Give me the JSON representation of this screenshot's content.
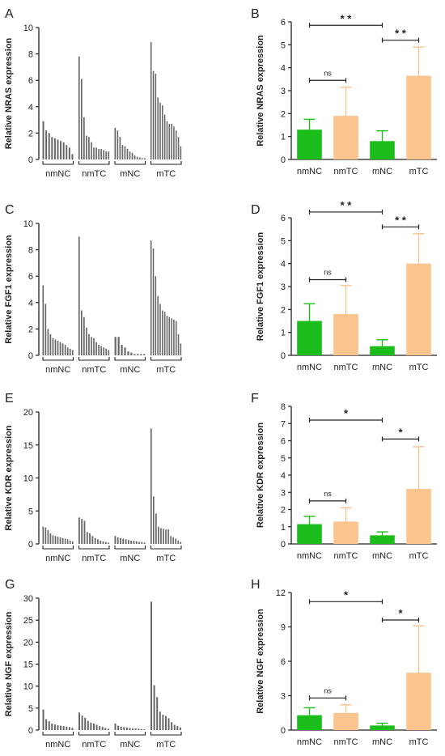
{
  "colors": {
    "green": "#1bbd1b",
    "orange": "#f9c48e",
    "bar": "#666666",
    "axis": "#222222"
  },
  "chart_data": [
    {
      "panel": "A",
      "type": "bar",
      "ylabel": "Relative NRAS expression",
      "ylim": [
        0,
        10
      ],
      "yticks": [
        0,
        2,
        4,
        6,
        8,
        10
      ],
      "groups": [
        {
          "name": "nmNC",
          "values": [
            2.9,
            2.2,
            2.0,
            1.7,
            1.6,
            1.5,
            1.4,
            1.3,
            1.1,
            0.9,
            0.4
          ]
        },
        {
          "name": "nmTC",
          "values": [
            7.8,
            6.1,
            3.2,
            1.8,
            1.7,
            1.3,
            0.9,
            0.9,
            0.8,
            0.8,
            0.7,
            0.6,
            0.6
          ]
        },
        {
          "name": "mNC",
          "values": [
            2.4,
            2.2,
            1.7,
            1.1,
            1.0,
            0.8,
            0.6,
            0.5,
            0.3,
            0.2,
            0.15,
            0.1,
            0.1
          ]
        },
        {
          "name": "mTC",
          "values": [
            8.9,
            6.7,
            6.5,
            4.7,
            4.3,
            4.1,
            3.4,
            2.9,
            2.7,
            2.7,
            2.5,
            2.2,
            1.7,
            1.0
          ]
        }
      ]
    },
    {
      "panel": "B",
      "type": "bar",
      "ylabel": "Relative NRAS expression",
      "ylim": [
        0,
        6
      ],
      "yticks": [
        0,
        1,
        2,
        3,
        4,
        5,
        6
      ],
      "categories": [
        "nmNC",
        "nmTC",
        "mNC",
        "mTC"
      ],
      "values": [
        1.3,
        1.9,
        0.8,
        3.65
      ],
      "errors": [
        0.45,
        1.25,
        0.45,
        1.25
      ],
      "colors": [
        "green",
        "orange",
        "green",
        "orange"
      ],
      "comparisons": [
        {
          "from": 0,
          "to": 2,
          "y": 5.85,
          "label": "* *"
        },
        {
          "from": 2,
          "to": 3,
          "y": 5.2,
          "label": "* *"
        },
        {
          "from": 0,
          "to": 1,
          "y": 3.45,
          "label": "ns"
        }
      ]
    },
    {
      "panel": "C",
      "type": "bar",
      "ylabel": "Relative FGF1 expression",
      "ylim": [
        0,
        10
      ],
      "yticks": [
        0,
        2,
        4,
        6,
        8,
        10
      ],
      "groups": [
        {
          "name": "nmNC",
          "values": [
            5.3,
            3.9,
            2.0,
            1.6,
            1.3,
            1.2,
            1.1,
            1.0,
            0.9,
            0.8,
            0.6,
            0.5,
            0.4
          ]
        },
        {
          "name": "nmTC",
          "values": [
            9.0,
            3.4,
            2.9,
            2.1,
            1.6,
            1.4,
            1.3,
            1.0,
            0.8,
            0.7,
            0.6,
            0.5,
            0.4
          ]
        },
        {
          "name": "mNC",
          "values": [
            1.4,
            1.4,
            0.8,
            0.6,
            0.3,
            0.2,
            0.1,
            0.1,
            0.1,
            0.1
          ]
        },
        {
          "name": "mTC",
          "values": [
            8.7,
            8.1,
            6.0,
            4.5,
            3.9,
            3.4,
            3.3,
            3.0,
            2.9,
            2.8,
            2.7,
            2.6,
            1.6,
            0.9
          ]
        }
      ]
    },
    {
      "panel": "D",
      "type": "bar",
      "ylabel": "Relative FGF1 expression",
      "ylim": [
        0,
        6
      ],
      "yticks": [
        0,
        1,
        2,
        3,
        4,
        5,
        6
      ],
      "categories": [
        "nmNC",
        "nmTC",
        "mNC",
        "mTC"
      ],
      "values": [
        1.5,
        1.8,
        0.4,
        4.0
      ],
      "errors": [
        0.75,
        1.25,
        0.28,
        1.3
      ],
      "colors": [
        "green",
        "orange",
        "green",
        "orange"
      ],
      "comparisons": [
        {
          "from": 0,
          "to": 2,
          "y": 6.25,
          "label": "* *"
        },
        {
          "from": 2,
          "to": 3,
          "y": 5.6,
          "label": "* *"
        },
        {
          "from": 0,
          "to": 1,
          "y": 3.3,
          "label": "ns"
        }
      ]
    },
    {
      "panel": "E",
      "type": "bar",
      "ylabel": "Relative KDR expression",
      "ylim": [
        0,
        20
      ],
      "yticks": [
        0,
        5,
        10,
        15,
        20
      ],
      "groups": [
        {
          "name": "nmNC",
          "values": [
            2.6,
            2.5,
            2.1,
            1.6,
            1.3,
            1.2,
            1.1,
            1.0,
            0.9,
            0.8,
            0.7,
            0.5,
            0.4
          ]
        },
        {
          "name": "nmTC",
          "values": [
            4.0,
            3.8,
            3.5,
            1.8,
            1.6,
            1.2,
            0.9,
            0.7,
            0.5,
            0.4,
            0.3,
            0.2
          ]
        },
        {
          "name": "mNC",
          "values": [
            1.2,
            1.0,
            0.9,
            0.8,
            0.7,
            0.6,
            0.5,
            0.5,
            0.4,
            0.3,
            0.3,
            0.2
          ]
        },
        {
          "name": "mTC",
          "values": [
            17.5,
            7.2,
            4.6,
            2.6,
            2.4,
            2.3,
            2.2,
            2.2,
            1.2,
            1.0,
            0.8,
            0.5,
            0.3
          ]
        }
      ]
    },
    {
      "panel": "F",
      "type": "bar",
      "ylabel": "Relative KDR expression",
      "ylim": [
        0,
        8
      ],
      "yticks": [
        0,
        1,
        2,
        3,
        4,
        5,
        6,
        7,
        8
      ],
      "categories": [
        "nmNC",
        "nmTC",
        "mNC",
        "mTC"
      ],
      "values": [
        1.15,
        1.3,
        0.5,
        3.2
      ],
      "errors": [
        0.45,
        0.8,
        0.2,
        2.45
      ],
      "colors": [
        "green",
        "orange",
        "green",
        "orange"
      ],
      "comparisons": [
        {
          "from": 0,
          "to": 2,
          "y": 7.2,
          "label": "*"
        },
        {
          "from": 2,
          "to": 3,
          "y": 6.1,
          "label": "*"
        },
        {
          "from": 0,
          "to": 1,
          "y": 2.5,
          "label": "ns"
        }
      ]
    },
    {
      "panel": "G",
      "type": "bar",
      "ylabel": "Relative NGF expression",
      "ylim": [
        0,
        30
      ],
      "yticks": [
        0,
        5,
        10,
        15,
        20,
        25,
        30
      ],
      "groups": [
        {
          "name": "nmNC",
          "values": [
            4.7,
            2.5,
            2.0,
            1.5,
            1.3,
            1.1,
            1.0,
            0.9,
            0.8,
            0.7,
            0.5
          ]
        },
        {
          "name": "nmTC",
          "values": [
            4.0,
            3.3,
            2.8,
            2.1,
            1.7,
            1.5,
            1.2,
            0.9,
            0.7,
            0.5,
            0.3
          ]
        },
        {
          "name": "mNC",
          "values": [
            1.5,
            1.0,
            0.8,
            0.7,
            0.6,
            0.5,
            0.4,
            0.4,
            0.3,
            0.2,
            0.2
          ]
        },
        {
          "name": "mTC",
          "values": [
            29.2,
            10.2,
            7.5,
            4.2,
            3.5,
            3.2,
            2.7,
            1.8,
            1.2,
            0.9,
            0.6
          ]
        }
      ]
    },
    {
      "panel": "H",
      "type": "bar",
      "ylabel": "Relative NGF expression",
      "ylim": [
        0,
        12
      ],
      "yticks": [
        0,
        3,
        6,
        9,
        12
      ],
      "categories": [
        "nmNC",
        "nmTC",
        "mNC",
        "mTC"
      ],
      "values": [
        1.3,
        1.5,
        0.4,
        5.0
      ],
      "errors": [
        0.65,
        0.7,
        0.2,
        4.1
      ],
      "colors": [
        "green",
        "orange",
        "green",
        "orange"
      ],
      "comparisons": [
        {
          "from": 0,
          "to": 2,
          "y": 11.2,
          "label": "*"
        },
        {
          "from": 2,
          "to": 3,
          "y": 9.6,
          "label": "*"
        },
        {
          "from": 0,
          "to": 1,
          "y": 2.8,
          "label": "ns"
        }
      ]
    }
  ]
}
